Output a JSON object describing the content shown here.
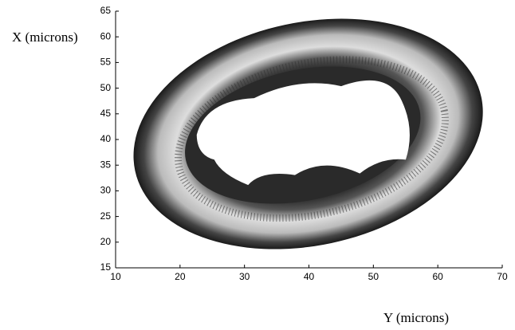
{
  "chart_data": {
    "type": "image",
    "xlabel": "Y (microns)",
    "ylabel": "X (microns)",
    "xlim": [
      10,
      70
    ],
    "ylim": [
      15,
      65
    ],
    "xticks": [
      10,
      20,
      30,
      40,
      50,
      60,
      70
    ],
    "yticks": [
      15,
      20,
      25,
      30,
      35,
      40,
      45,
      50,
      55,
      60,
      65
    ]
  }
}
